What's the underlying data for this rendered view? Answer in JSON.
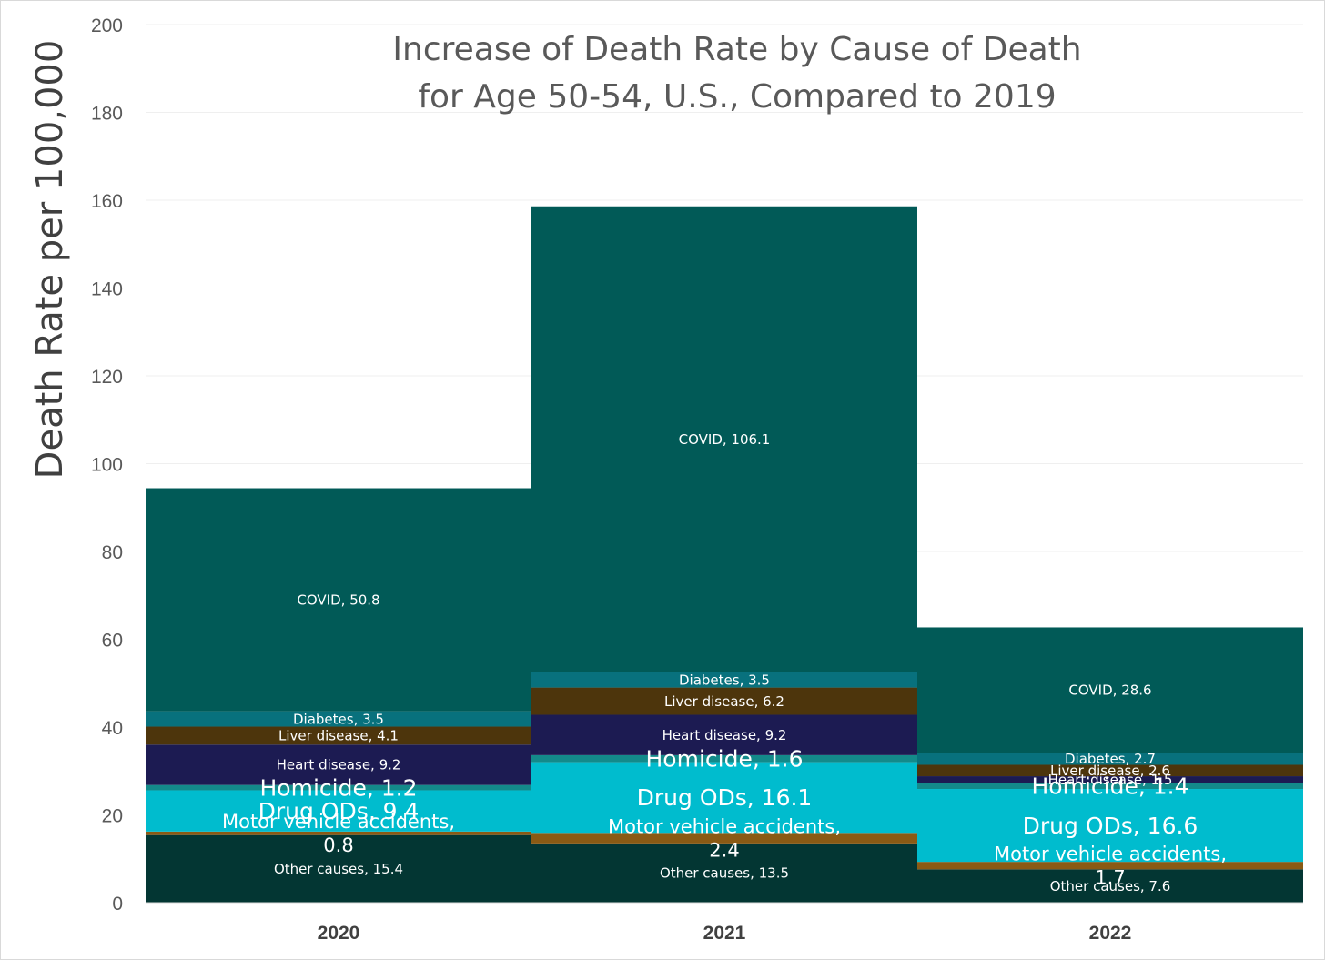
{
  "chart_data": {
    "type": "bar",
    "stacked": true,
    "title": [
      "Increase of Death Rate by Cause of Death",
      "for Age 50-54, U.S., Compared to 2019"
    ],
    "ylabel": "Death Rate per 100,000",
    "xlabel": "",
    "ylim": [
      0,
      200
    ],
    "yticks": [
      0,
      20,
      40,
      60,
      80,
      100,
      120,
      140,
      160,
      180,
      200
    ],
    "grid": true,
    "categories": [
      "2020",
      "2021",
      "2022"
    ],
    "series": [
      {
        "name": "Other causes",
        "color": "#033633",
        "values": [
          15.4,
          13.5,
          7.6
        ]
      },
      {
        "name": "Motor vehicle accidents",
        "color": "#8a5a14",
        "values": [
          0.8,
          2.4,
          1.7
        ]
      },
      {
        "name": "Drug ODs",
        "color": "#00bcce",
        "values": [
          9.4,
          16.1,
          16.6
        ]
      },
      {
        "name": "Homicide",
        "color": "#138a8a",
        "values": [
          1.2,
          1.6,
          1.4
        ]
      },
      {
        "name": "Heart disease",
        "color": "#1c1b52",
        "values": [
          9.2,
          9.2,
          1.5
        ]
      },
      {
        "name": "Liver disease",
        "color": "#4d350c",
        "values": [
          4.1,
          6.2,
          2.6
        ]
      },
      {
        "name": "Diabetes",
        "color": "#08717d",
        "values": [
          3.5,
          3.5,
          2.7
        ]
      },
      {
        "name": "COVID",
        "color": "#015a57",
        "values": [
          50.8,
          106.1,
          28.6
        ]
      }
    ],
    "data_labels": [
      [
        "Other causes, 15.4",
        "Other causes, 13.5",
        "Other causes, 7.6"
      ],
      [
        "Motor vehicle accidents,|0.8",
        "Motor vehicle accidents,|2.4",
        "Motor vehicle accidents,|1.7"
      ],
      [
        "Drug ODs, 9.4",
        "Drug ODs, 16.1",
        "Drug ODs, 16.6"
      ],
      [
        "Homicide, 1.2",
        "Homicide, 1.6",
        "Homicide, 1.4"
      ],
      [
        "Heart disease, 9.2",
        "Heart disease, 9.2",
        "Heart disease, 1.5"
      ],
      [
        "Liver disease, 4.1",
        "Liver disease, 6.2",
        "Liver disease, 2.6"
      ],
      [
        "Diabetes, 3.5",
        "Diabetes, 3.5",
        "Diabetes, 2.7"
      ],
      [
        "COVID, 50.8",
        "COVID, 106.1",
        "COVID, 28.6"
      ]
    ]
  }
}
